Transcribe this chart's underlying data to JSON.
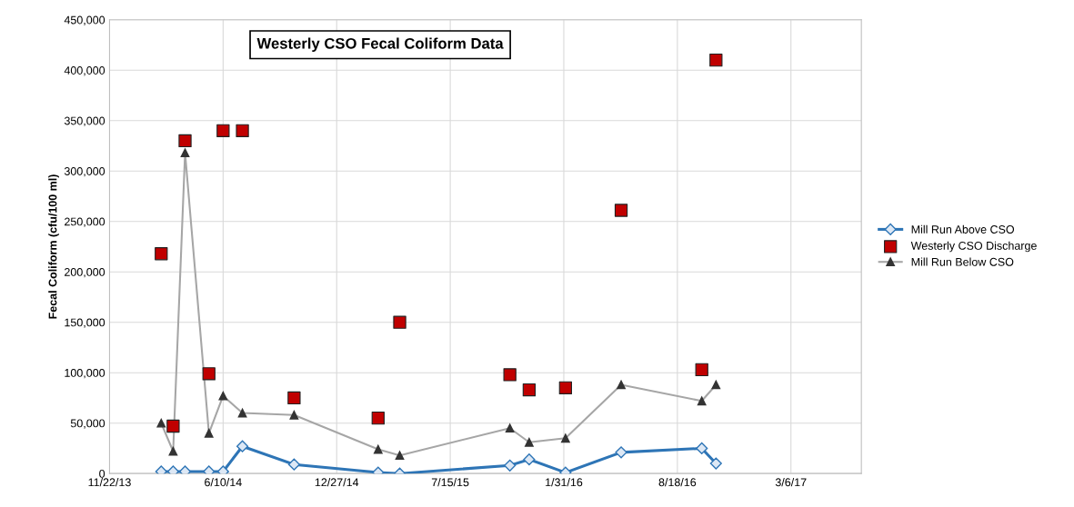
{
  "chart_data": {
    "type": "line",
    "title": "Westerly CSO Fecal Coliform Data",
    "ylabel": "Fecal Coliform (cfu/100 ml)",
    "series": [
      {
        "name": "Mill Run Above CSO",
        "color": "#2e75b6",
        "marker": "diamond",
        "line_style": "solid",
        "x": [
          "2014-02-21",
          "2014-03-14",
          "2014-04-04",
          "2014-05-16",
          "2014-06-10",
          "2014-07-14",
          "2014-10-13",
          "2015-03-10",
          "2015-04-17",
          "2015-10-28",
          "2015-12-01",
          "2016-02-03",
          "2016-05-11",
          "2016-09-30",
          "2016-10-25"
        ],
        "values": [
          2000,
          2000,
          2000,
          2000,
          2000,
          27000,
          9000,
          1000,
          0,
          8000,
          14000,
          1000,
          21000,
          25000,
          10000
        ]
      },
      {
        "name": "Westerly CSO Discharge",
        "type": "scatter",
        "color": "#c00000",
        "marker": "square",
        "x": [
          "2014-02-21",
          "2014-03-14",
          "2014-04-04",
          "2014-05-16",
          "2014-06-10",
          "2014-07-14",
          "2014-10-13",
          "2015-03-10",
          "2015-04-17",
          "2015-10-28",
          "2015-12-01",
          "2016-02-03",
          "2016-05-11",
          "2016-09-30",
          "2016-10-25"
        ],
        "values": [
          218000,
          47000,
          330000,
          99000,
          340000,
          340000,
          75000,
          55000,
          150000,
          98000,
          83000,
          85000,
          261000,
          103000,
          410000
        ]
      },
      {
        "name": "Mill Run Below CSO",
        "color": "#a6a6a6",
        "marker": "triangle",
        "line_style": "solid",
        "x": [
          "2014-02-21",
          "2014-03-14",
          "2014-04-04",
          "2014-05-16",
          "2014-06-10",
          "2014-07-14",
          "2014-10-13",
          "2015-03-10",
          "2015-04-17",
          "2015-10-28",
          "2015-12-01",
          "2016-02-03",
          "2016-05-11",
          "2016-09-30",
          "2016-10-25"
        ],
        "values": [
          50000,
          22000,
          318000,
          40000,
          77000,
          60000,
          58000,
          24000,
          18000,
          45000,
          31000,
          35000,
          88000,
          72000,
          88000
        ]
      }
    ],
    "xlim": [
      "2013-11-22",
      "2017-07-08"
    ],
    "xticks": [
      {
        "value": "2013-11-22",
        "label": "11/22/13"
      },
      {
        "value": "2014-06-10",
        "label": "6/10/14"
      },
      {
        "value": "2014-12-27",
        "label": "12/27/14"
      },
      {
        "value": "2015-07-15",
        "label": "7/15/15"
      },
      {
        "value": "2016-01-31",
        "label": "1/31/16"
      },
      {
        "value": "2016-08-18",
        "label": "8/18/16"
      },
      {
        "value": "2017-03-06",
        "label": "3/6/17"
      }
    ],
    "ylim": [
      0,
      450000
    ],
    "yticks": [
      0,
      {
        "value": 50000,
        "label": "50,000"
      },
      {
        "value": 100000,
        "label": "100,000"
      },
      {
        "value": 150000,
        "label": "150,000"
      },
      {
        "value": 200000,
        "label": "200,000"
      },
      {
        "value": 250000,
        "label": "250,000"
      },
      {
        "value": 300000,
        "label": "300,000"
      },
      {
        "value": 350000,
        "label": "350,000"
      },
      {
        "value": 400000,
        "label": "400,000"
      },
      {
        "value": 450000,
        "label": "450,000"
      }
    ],
    "grid": true,
    "legend": "right"
  }
}
